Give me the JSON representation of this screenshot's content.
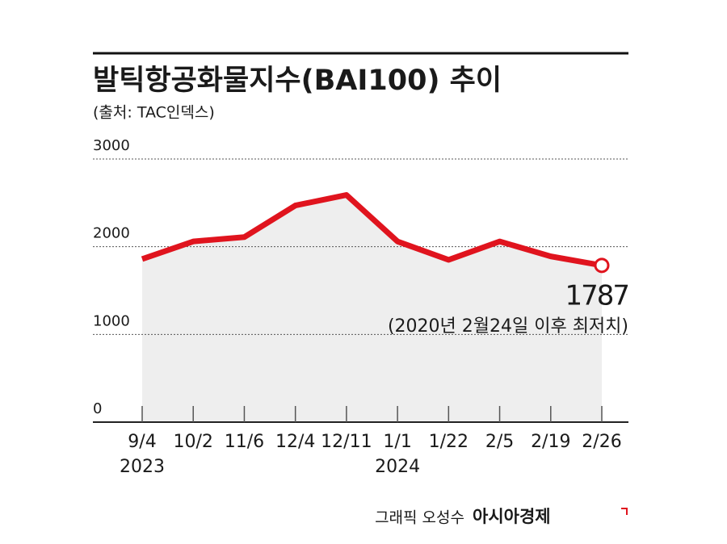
{
  "chart_data": {
    "type": "line",
    "title": "발틱항공화물지수(BAI100) 추이",
    "subtitle": "(출처: TAC인덱스)",
    "categories": [
      "9/4",
      "10/2",
      "11/6",
      "12/4",
      "12/11",
      "1/1",
      "1/22",
      "2/5",
      "2/19",
      "2/26"
    ],
    "category_years": [
      "2023",
      null,
      null,
      null,
      null,
      "2024",
      null,
      null,
      null,
      null
    ],
    "values": [
      1860,
      2060,
      2110,
      2470,
      2590,
      2060,
      1850,
      2060,
      1890,
      1787
    ],
    "color": "#e0141e",
    "area_color": "#eeeeee",
    "ylim": [
      0,
      3000
    ],
    "yticks": [
      0,
      1000,
      2000,
      3000
    ],
    "grid": true,
    "annotation": "(2020년 2월24일 이후 최저치)",
    "credit": "그래픽 오성수",
    "brand": "아시아경제"
  }
}
